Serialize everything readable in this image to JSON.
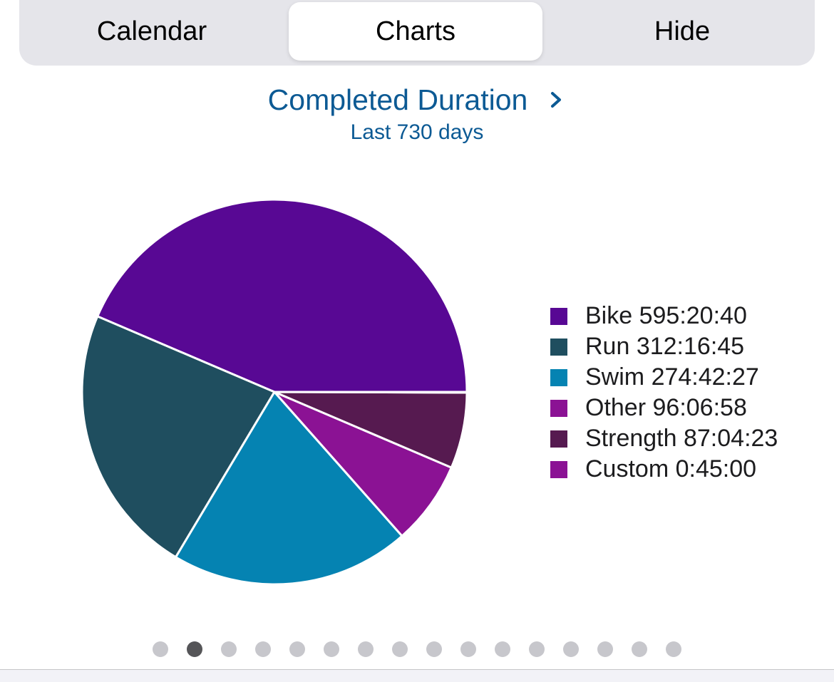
{
  "segmented_control": {
    "items": [
      {
        "label": "Calendar",
        "active": false
      },
      {
        "label": "Charts",
        "active": true
      },
      {
        "label": "Hide",
        "active": false
      }
    ]
  },
  "header": {
    "title": "Completed Duration",
    "subtitle": "Last 730 days"
  },
  "chart_data": {
    "type": "pie",
    "title": "Completed Duration",
    "subtitle": "Last 730 days",
    "legend_placement": "right",
    "slices": [
      {
        "name": "Bike",
        "value": "595:20:40",
        "seconds": 2143240,
        "color": "#580894"
      },
      {
        "name": "Run",
        "value": "312:16:45",
        "seconds": 1124205,
        "color": "#1f4e5f"
      },
      {
        "name": "Swim",
        "value": "274:42:27",
        "seconds": 988947,
        "color": "#0583b2"
      },
      {
        "name": "Other",
        "value": "96:06:58",
        "seconds": 346018,
        "color": "#8b1294"
      },
      {
        "name": "Strength",
        "value": "87:04:23",
        "seconds": 313463,
        "color": "#561a50"
      },
      {
        "name": "Custom",
        "value": "0:45:00",
        "seconds": 2700,
        "color": "#8b1294"
      }
    ]
  },
  "pagination": {
    "count": 16,
    "active_index": 1
  }
}
